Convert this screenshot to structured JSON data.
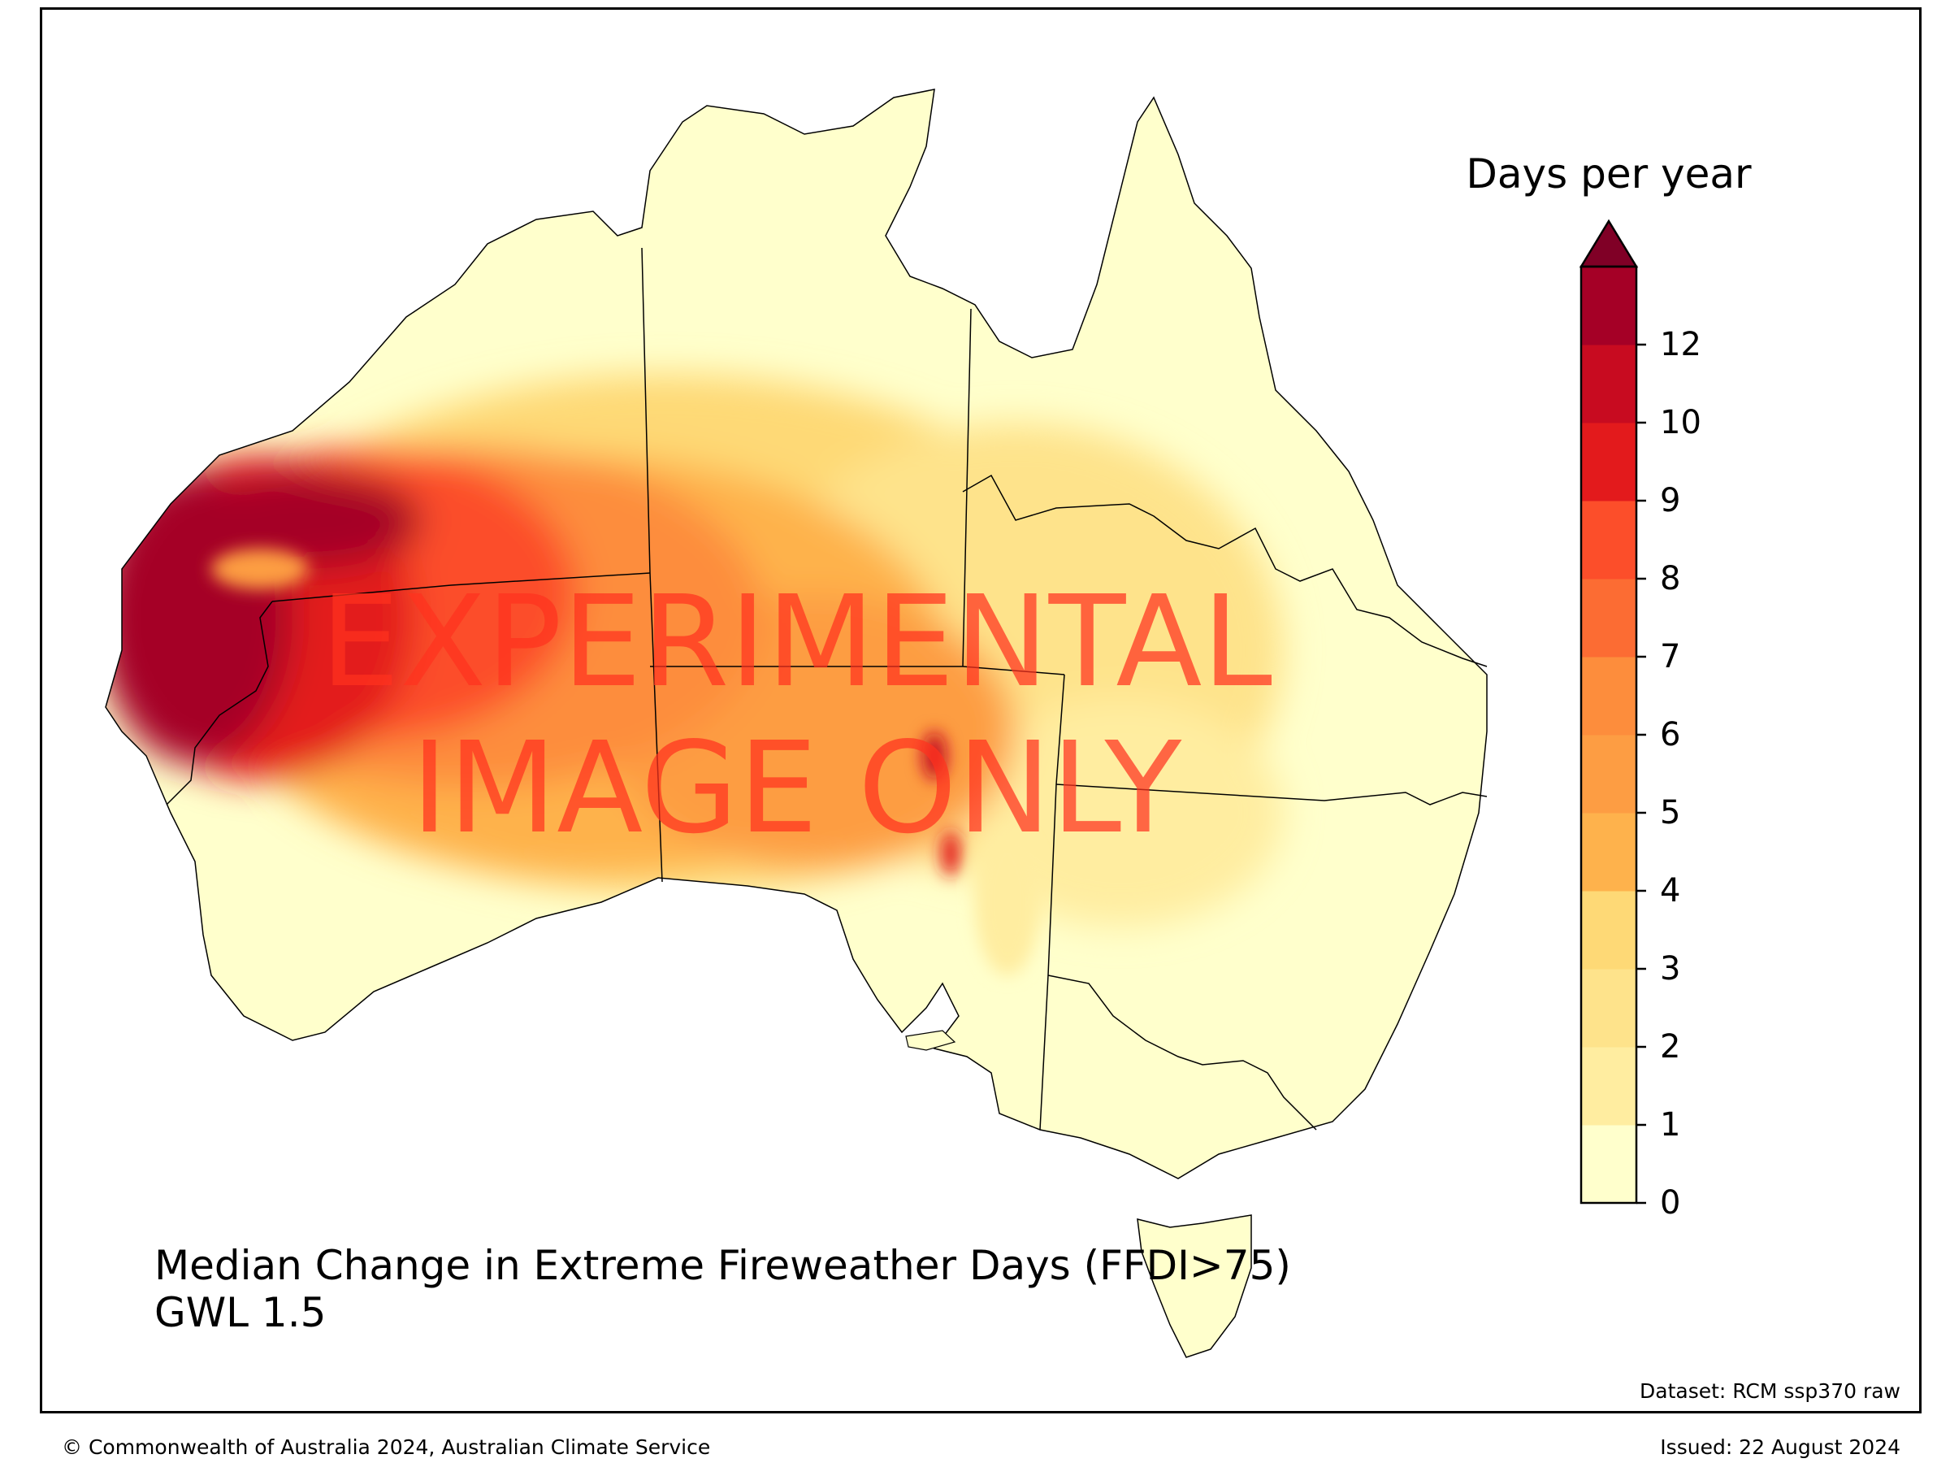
{
  "map": {
    "title_line1": "Median Change in Extreme Fireweather Days (FFDI>75)",
    "title_line2": "GWL 1.5",
    "dataset": "Dataset: RCM ssp370 raw",
    "watermark_line1": "EXPERIMENTAL",
    "watermark_line2": "IMAGE ONLY"
  },
  "legend": {
    "title": "Days per year",
    "ticks": [
      "0",
      "1",
      "2",
      "3",
      "4",
      "5",
      "6",
      "7",
      "8",
      "9",
      "10",
      "12"
    ],
    "colors": [
      "#ffffcc",
      "#ffeda0",
      "#fee38b",
      "#fed976",
      "#feb24c",
      "#fd9d43",
      "#fd8d3c",
      "#fc6c33",
      "#fc4e2a",
      "#e31a1c",
      "#c80b20",
      "#a50026"
    ],
    "extend_color": "#800026"
  },
  "footer": {
    "copyright": "© Commonwealth of Australia 2024, Australian Climate Service",
    "issued": "Issued: 22 August 2024"
  }
}
